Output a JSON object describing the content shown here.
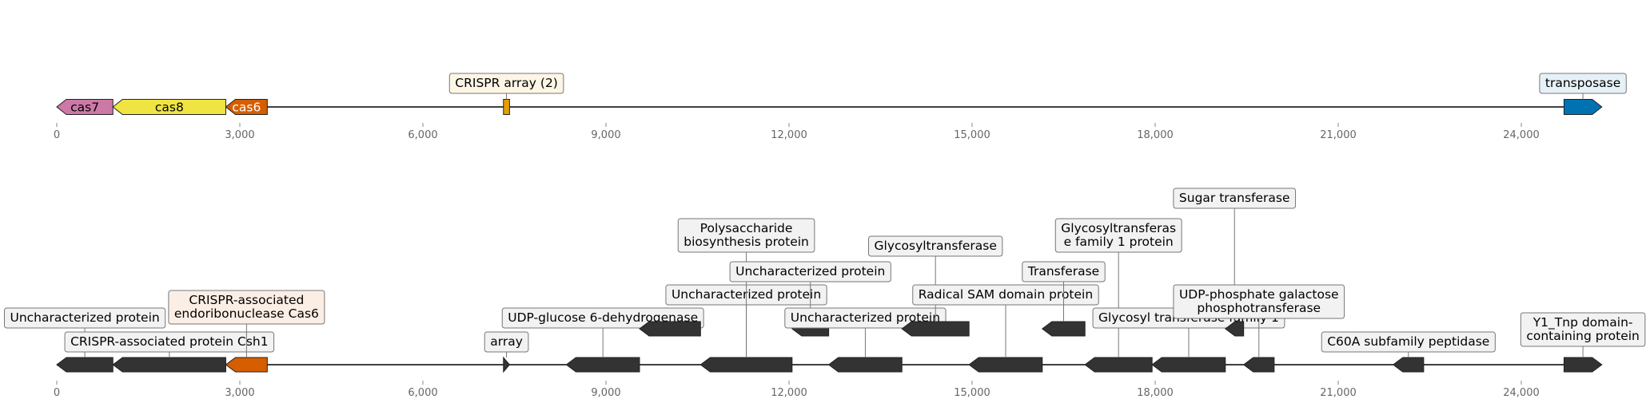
{
  "colors": {
    "cas7": "#cc79a7",
    "cas8": "#f0e442",
    "cas6": "#d55e00",
    "crispr_array": "#e69f00",
    "transposase": "#0072b2",
    "other": "#333333",
    "label_box_default": "#f2f2f2",
    "label_box_cas6": "#fbeee5",
    "label_box_array": "#fdf6e6",
    "label_box_transposase": "#e6f1f7"
  },
  "axis": {
    "min": 0,
    "max": 25500,
    "ticks": [
      0,
      3000,
      6000,
      9000,
      12000,
      15000,
      18000,
      21000,
      24000
    ],
    "tick_labels": [
      "0",
      "3,000",
      "6,000",
      "9,000",
      "12,000",
      "15,000",
      "18,000",
      "21,000",
      "24,000"
    ]
  },
  "tracks": [
    {
      "id": "track-1",
      "features": [
        {
          "name": "cas7",
          "start": 0,
          "end": 920,
          "strand": -1,
          "color_key": "cas7",
          "label": "cas7",
          "label_mode": "inside"
        },
        {
          "name": "cas8",
          "start": 920,
          "end": 2770,
          "strand": -1,
          "color_key": "cas8",
          "label": "cas8",
          "label_mode": "inside"
        },
        {
          "name": "cas6",
          "start": 2770,
          "end": 3450,
          "strand": -1,
          "color_key": "cas6",
          "label": "cas6",
          "label_mode": "inside",
          "label_color": "#ffffff"
        },
        {
          "name": "crispr-array",
          "start": 7320,
          "end": 7420,
          "strand": 0,
          "color_key": "crispr_array",
          "label": "CRISPR array (2)",
          "label_mode": "box",
          "box_key": "label_box_array",
          "level": 1
        },
        {
          "name": "transposase",
          "start": 24700,
          "end": 25320,
          "strand": 1,
          "color_key": "transposase",
          "label": "transposase",
          "label_mode": "box",
          "box_key": "label_box_transposase",
          "level": 1
        }
      ]
    },
    {
      "id": "track-2",
      "features": [
        {
          "name": "uncharacterized-1",
          "start": 0,
          "end": 920,
          "strand": -1,
          "color_key": "other",
          "label": "Uncharacterized protein",
          "level": 3
        },
        {
          "name": "csh1",
          "start": 920,
          "end": 2770,
          "strand": -1,
          "color_key": "other",
          "label": "CRISPR-associated protein Csh1",
          "level": 1
        },
        {
          "name": "cas6-2",
          "start": 2770,
          "end": 3450,
          "strand": -1,
          "color_key": "cas6",
          "label": "CRISPR-associated\nendoribonuclease Cas6",
          "box_key": "label_box_cas6",
          "level": 4
        },
        {
          "name": "array",
          "start": 7320,
          "end": 7420,
          "strand": 1,
          "color_key": "other",
          "label": "array",
          "level": 1
        },
        {
          "name": "udp-glucose",
          "start": 8350,
          "end": 9550,
          "strand": -1,
          "color_key": "other",
          "label": "UDP-glucose 6-dehydrogenase",
          "level": 3,
          "rowoff": true
        },
        {
          "name": "uncharacterized-2",
          "start": 9550,
          "end": 10550,
          "strand": -1,
          "color_key": "other",
          "label": "",
          "row": 1
        },
        {
          "name": "uncharacterized-3",
          "start": 10550,
          "end": 12050,
          "strand": -1,
          "color_key": "other",
          "label": "Uncharacterized protein",
          "level": 5,
          "anchor_row": 1
        },
        {
          "name": "polysaccharide",
          "start": 10550,
          "end": 12050,
          "strand": -1,
          "color_key": "other",
          "label": "Polysaccharide\nbiosynthesis protein",
          "level": 8,
          "shared": true
        },
        {
          "name": "uncharacterized-4",
          "start": 12050,
          "end": 12650,
          "strand": -1,
          "color_key": "other",
          "label": "Uncharacterized protein",
          "level": 6,
          "row": 1
        },
        {
          "name": "uncharacterized-5",
          "start": 12650,
          "end": 13850,
          "strand": -1,
          "color_key": "other",
          "label": "Uncharacterized protein",
          "level": 3
        },
        {
          "name": "glycosyltransferase",
          "start": 13850,
          "end": 14950,
          "strand": -1,
          "color_key": "other",
          "label": "Glycosyltransferase",
          "level": 7,
          "row": 1
        },
        {
          "name": "radical-sam",
          "start": 14950,
          "end": 16150,
          "strand": -1,
          "color_key": "other",
          "label": "Radical SAM domain protein",
          "level": 5
        },
        {
          "name": "transferase",
          "start": 16150,
          "end": 16850,
          "strand": -1,
          "color_key": "other",
          "label": "Transferase",
          "level": 6,
          "row": 1
        },
        {
          "name": "glycosyltransferase-fam1",
          "start": 16850,
          "end": 17950,
          "strand": -1,
          "color_key": "other",
          "label": "Glycosyltransferas\ne family 1 protein",
          "level": 8
        },
        {
          "name": "glycosyl-transferase-fam1",
          "start": 17950,
          "end": 19150,
          "strand": -1,
          "color_key": "other",
          "label": "Glycosyl transferase family 1",
          "level": 3
        },
        {
          "name": "sugar-transferase",
          "start": 19150,
          "end": 19450,
          "strand": -1,
          "color_key": "other",
          "label": "Sugar transferase",
          "level": 10,
          "row": 1
        },
        {
          "name": "udp-phosphate",
          "start": 19450,
          "end": 19950,
          "strand": -1,
          "color_key": "other",
          "label": "UDP-phosphate galactose\nphosphotransferase",
          "level": 5
        },
        {
          "name": "c60a",
          "start": 21900,
          "end": 22400,
          "strand": -1,
          "color_key": "other",
          "label": "C60A subfamily peptidase",
          "level": 1
        },
        {
          "name": "y1-tnp",
          "start": 24700,
          "end": 25320,
          "strand": 1,
          "color_key": "other",
          "label": "Y1_Tnp domain-\ncontaining protein",
          "level": 2
        }
      ]
    }
  ]
}
